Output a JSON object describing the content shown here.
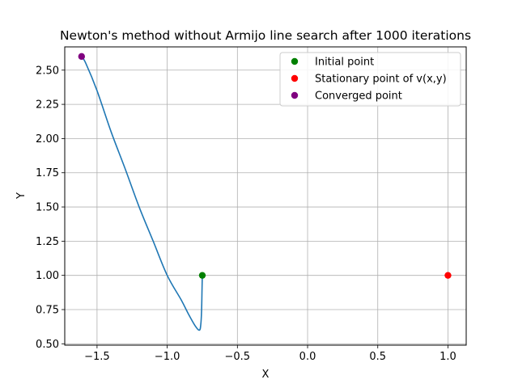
{
  "chart_data": {
    "type": "line",
    "title": "Newton's method without Armijo line search after 1000 iterations",
    "xlabel": "X",
    "ylabel": "Y",
    "xlim": [
      -1.73,
      1.13
    ],
    "ylim": [
      0.49,
      2.67
    ],
    "grid": true,
    "x_ticks": [
      -1.5,
      -1.0,
      -0.5,
      0.0,
      0.5,
      1.0
    ],
    "x_tick_labels": [
      "−1.5",
      "−1.0",
      "−0.5",
      "0.0",
      "0.5",
      "1.0"
    ],
    "y_ticks": [
      0.5,
      0.75,
      1.0,
      1.25,
      1.5,
      1.75,
      2.0,
      2.25,
      2.5
    ],
    "y_tick_labels": [
      "0.50",
      "0.75",
      "1.00",
      "1.25",
      "1.50",
      "1.75",
      "2.00",
      "2.25",
      "2.50"
    ],
    "series": [
      {
        "name": "path",
        "color": "#1f77b4",
        "x": [
          -0.75,
          -0.752,
          -0.755,
          -0.76,
          -0.77,
          -0.8,
          -0.85,
          -0.9,
          -1.0,
          -1.1,
          -1.2,
          -1.3,
          -1.4,
          -1.5,
          -1.58,
          -1.61
        ],
        "y": [
          1.0,
          0.9,
          0.75,
          0.65,
          0.6,
          0.63,
          0.72,
          0.82,
          1.0,
          1.25,
          1.5,
          1.78,
          2.05,
          2.35,
          2.55,
          2.6
        ]
      }
    ],
    "points": [
      {
        "name": "Initial point",
        "x": -0.75,
        "y": 1.0,
        "color": "#008000"
      },
      {
        "name": "Stationary point of v(x,y)",
        "x": 1.0,
        "y": 1.0,
        "color": "#ff0000"
      },
      {
        "name": "Converged point",
        "x": -1.61,
        "y": 2.6,
        "color": "#800080"
      }
    ],
    "legend": {
      "position": "top-right",
      "entries": [
        {
          "label": "Initial point",
          "color": "#008000"
        },
        {
          "label": "Stationary point of v(x,y)",
          "color": "#ff0000"
        },
        {
          "label": "Converged point",
          "color": "#800080"
        }
      ]
    }
  }
}
